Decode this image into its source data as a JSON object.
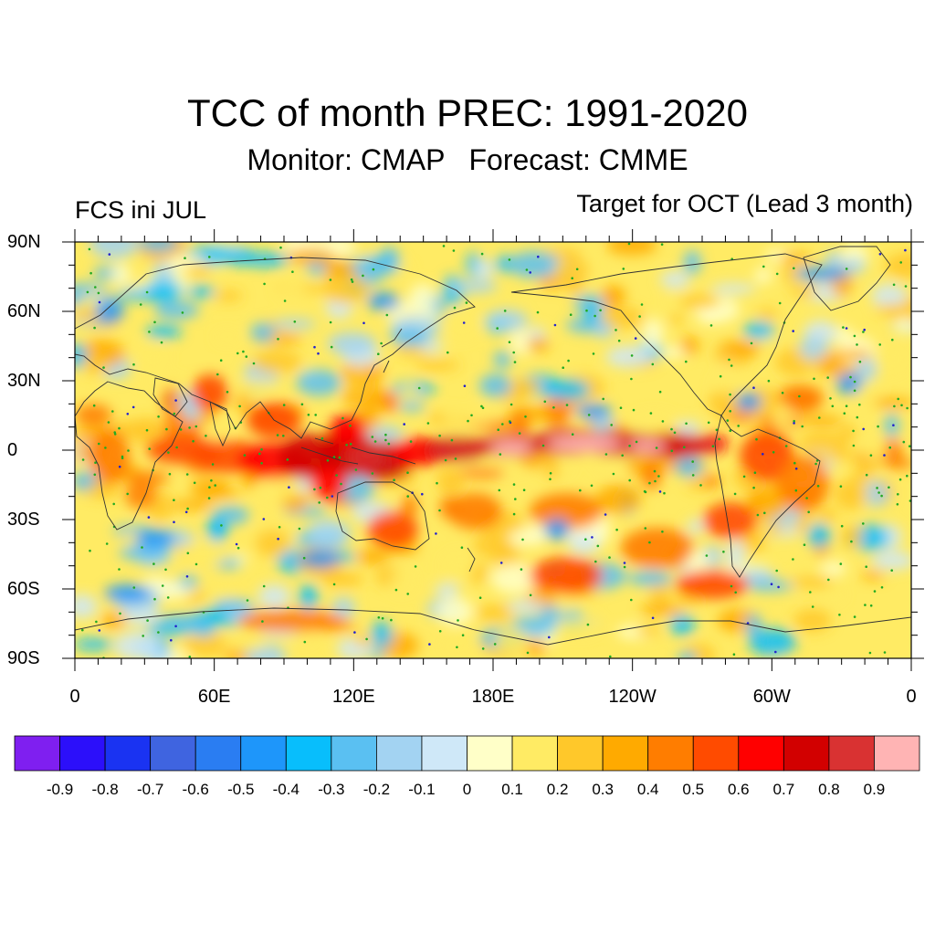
{
  "title": "TCC of month PREC: 1991-2020",
  "subtitle": "Monitor: CMAP   Forecast: CMME",
  "left_label": "FCS ini JUL",
  "right_label": "Target for OCT (Lead 3 month)",
  "lat_labels": [
    "90N",
    "60N",
    "30N",
    "0",
    "30S",
    "60S",
    "90S"
  ],
  "lon_labels": [
    "0",
    "60E",
    "120E",
    "180E",
    "120W",
    "60W",
    "0"
  ],
  "colorbar": {
    "colors": [
      "#7f1ff0",
      "#2c0ffa",
      "#1a33f2",
      "#3f64e0",
      "#2a7df2",
      "#1e96fa",
      "#08befc",
      "#5ac0f2",
      "#a3d3f2",
      "#cfe8f8",
      "#ffffc8",
      "#ffeb64",
      "#ffc82a",
      "#ffaa00",
      "#ff7d00",
      "#ff4b00",
      "#ff0000",
      "#d20000",
      "#d93232",
      "#ffb4b4"
    ],
    "labels": [
      "-0.9",
      "-0.8",
      "-0.7",
      "-0.6",
      "-0.5",
      "-0.4",
      "-0.3",
      "-0.2",
      "-0.1",
      "0",
      "0.1",
      "0.2",
      "0.3",
      "0.4",
      "0.5",
      "0.6",
      "0.7",
      "0.8",
      "0.9"
    ]
  }
}
